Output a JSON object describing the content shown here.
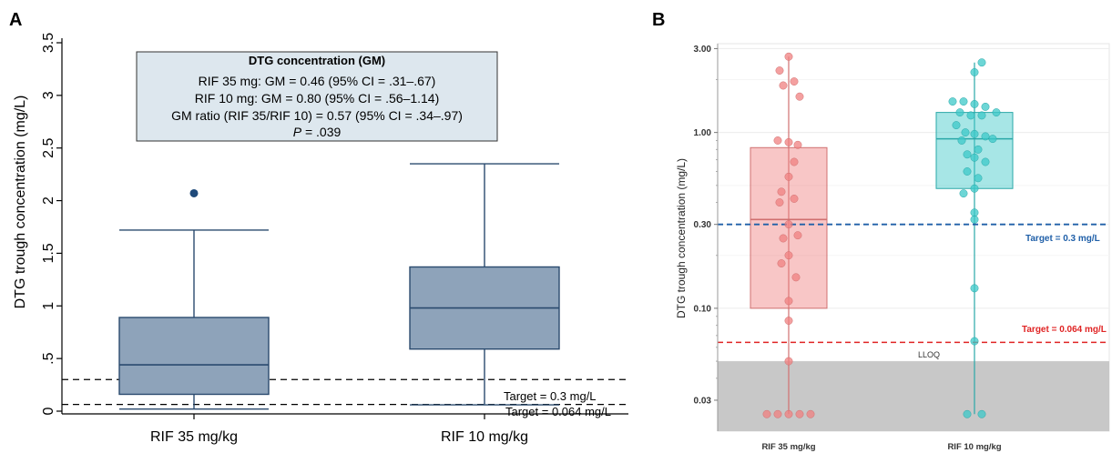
{
  "panel_a": {
    "letter": "A",
    "ylabel": "DTG trough concentration (mg/L)",
    "ytick_labels": [
      "0",
      ".5",
      "1",
      "1.5",
      "2",
      "2.5",
      "3",
      "3.5"
    ],
    "box_color": "#8ea3ba",
    "box_edge": "#2a4a6e",
    "annotation": {
      "title": "DTG concentration (GM)",
      "line1": "RIF 35 mg: GM = 0.46 (95% CI = .31–.67)",
      "line2": "RIF 10 mg: GM = 0.80 (95% CI = .56–1.14)",
      "line3": "GM ratio (RIF 35/RIF 10) = 0.57 (95% CI = .34–.97)",
      "p_label": "P",
      "p_value": " = .039",
      "bg_color": "#dde7ee"
    },
    "target1_label": "Target = 0.3 mg/L",
    "target2_label": "Target = 0.064 mg/L"
  },
  "panel_b": {
    "letter": "B",
    "ylabel": "DTG trough concentration (mg/L)",
    "ytick_labels": [
      "0.03",
      "0.10",
      "0.30",
      "1.00",
      "3.00"
    ],
    "lloq_label": "LLOQ",
    "target1_label": "Target = 0.3 mg/L",
    "target2_label": "Target = 0.064 mg/L",
    "target1_color": "#1f5fa8",
    "target2_color": "#e02424",
    "lloq_color": "#c8c8c8",
    "group_colors": [
      "#f08080",
      "#3cc8c8"
    ]
  },
  "chart_data": [
    {
      "type": "box",
      "panel": "A",
      "categories": [
        "RIF 35 mg/kg",
        "RIF 10 mg/kg"
      ],
      "ylabel": "DTG trough concentration (mg/L)",
      "ylim": [
        0,
        3.5
      ],
      "boxes": [
        {
          "category": "RIF 35 mg/kg",
          "whisker_low": 0.02,
          "q1": 0.16,
          "median": 0.44,
          "q3": 0.89,
          "whisker_high": 1.72,
          "outliers": [
            2.07
          ]
        },
        {
          "category": "RIF 10 mg/kg",
          "whisker_low": 0.06,
          "q1": 0.59,
          "median": 0.98,
          "q3": 1.37,
          "whisker_high": 2.35,
          "outliers": []
        }
      ],
      "reference_lines": [
        {
          "value": 0.3,
          "label": "Target = 0.3 mg/L"
        },
        {
          "value": 0.064,
          "label": "Target = 0.064 mg/L"
        }
      ]
    },
    {
      "type": "box",
      "panel": "B",
      "scale": "log",
      "categories": [
        "RIF 35 mg/kg",
        "RIF 10 mg/kg"
      ],
      "ylabel": "DTG trough concentration (mg/L)",
      "ylim": [
        0.02,
        3.2
      ],
      "boxes": [
        {
          "category": "RIF 35 mg/kg",
          "whisker_low": 0.025,
          "q1": 0.1,
          "median": 0.32,
          "q3": 0.82,
          "whisker_high": 2.7,
          "points": [
            2.7,
            2.25,
            1.95,
            1.85,
            1.6,
            0.9,
            0.88,
            0.85,
            0.68,
            0.56,
            0.46,
            0.42,
            0.4,
            0.3,
            0.26,
            0.25,
            0.2,
            0.18,
            0.15,
            0.11,
            0.085,
            0.05,
            0.025,
            0.025,
            0.025,
            0.025,
            0.025
          ]
        },
        {
          "category": "RIF 10 mg/kg",
          "whisker_low": 0.025,
          "q1": 0.48,
          "median": 0.92,
          "q3": 1.3,
          "whisker_high": 2.5,
          "points": [
            2.5,
            2.2,
            1.5,
            1.5,
            1.45,
            1.4,
            1.3,
            1.3,
            1.25,
            1.25,
            1.1,
            1.0,
            0.98,
            0.95,
            0.92,
            0.9,
            0.8,
            0.75,
            0.72,
            0.68,
            0.6,
            0.55,
            0.48,
            0.45,
            0.35,
            0.32,
            0.13,
            0.065,
            0.025,
            0.025
          ]
        }
      ],
      "reference_lines": [
        {
          "value": 0.3,
          "label": "Target = 0.3 mg/L"
        },
        {
          "value": 0.064,
          "label": "Target = 0.064 mg/L"
        },
        {
          "value": 0.05,
          "label": "LLOQ"
        }
      ]
    }
  ]
}
